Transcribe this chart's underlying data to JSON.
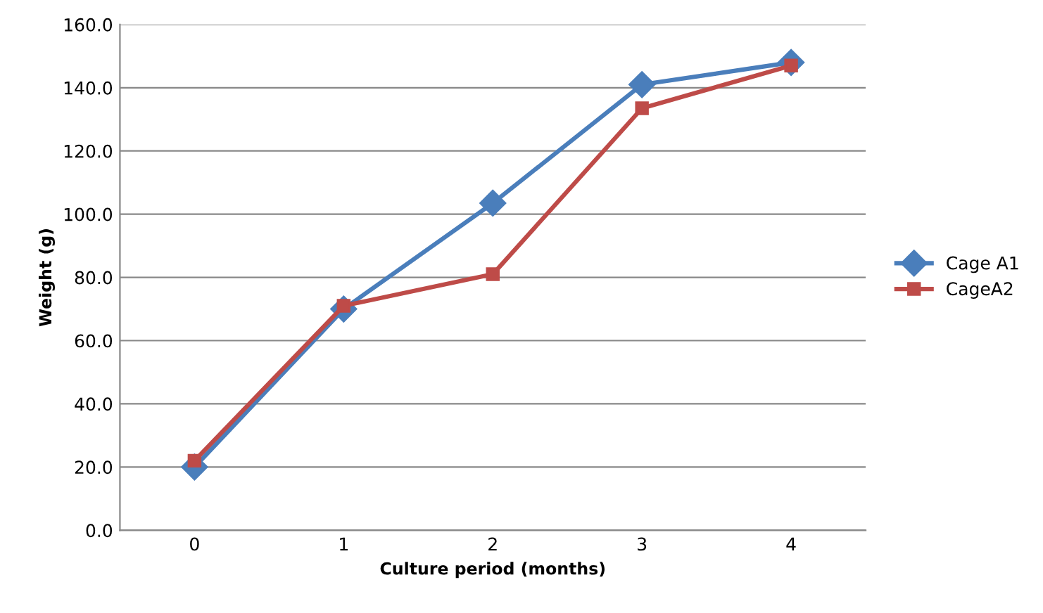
{
  "chart_data": {
    "type": "line",
    "xlabel": "Culture period (months)",
    "ylabel": "Weight (g)",
    "categories": [
      "0",
      "1",
      "2",
      "3",
      "4"
    ],
    "series": [
      {
        "name": "Cage A1",
        "color": "#4a7ebb",
        "values": [
          20,
          70,
          103.5,
          141,
          148
        ],
        "marker": "diamond"
      },
      {
        "name": "CageA2",
        "color": "#be4b48",
        "values": [
          22,
          71,
          81,
          133.5,
          147
        ],
        "marker": "square"
      }
    ],
    "ylim": [
      0,
      160
    ],
    "yticks": [
      {
        "value": 0,
        "label": "0.0"
      },
      {
        "value": 20,
        "label": "20.0"
      },
      {
        "value": 40,
        "label": "40.0"
      },
      {
        "value": 60,
        "label": "60.0"
      },
      {
        "value": 80,
        "label": "80.0"
      },
      {
        "value": 100,
        "label": "100.0"
      },
      {
        "value": 120,
        "label": "120.0"
      },
      {
        "value": 140,
        "label": "140.0"
      },
      {
        "value": 160,
        "label": "160.0"
      }
    ],
    "grid": "y",
    "legend": "right",
    "line_style": "solid"
  }
}
